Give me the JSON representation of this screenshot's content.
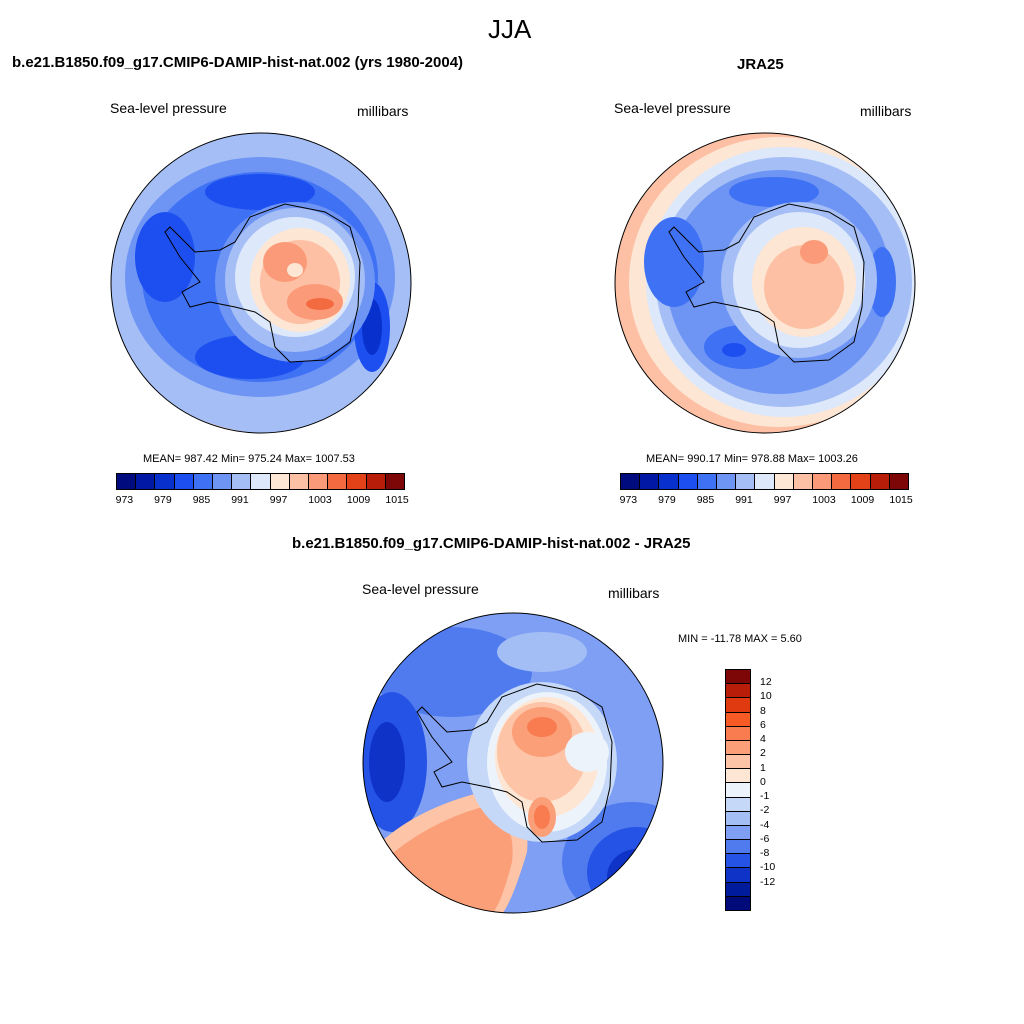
{
  "figure": {
    "season": "JJA",
    "diff_title": "b.e21.B1850.f09_g17.CMIP6-DAMIP-hist-nat.002 - JRA25"
  },
  "panels": [
    {
      "title": "b.e21.B1850.f09_g17.CMIP6-DAMIP-hist-nat.002 (yrs 1980-2004)",
      "variable": "Sea-level pressure",
      "units": "millibars",
      "stats": "MEAN= 987.42  Min= 975.24  Max= 1007.53"
    },
    {
      "title": "JRA25",
      "variable": "Sea-level pressure",
      "units": "millibars",
      "stats": "MEAN= 990.17  Min= 978.88  Max= 1003.26"
    },
    {
      "variable": "Sea-level pressure",
      "units": "millibars",
      "stats": "MIN = -11.78 MAX =   5.60"
    }
  ],
  "colorbars": {
    "abs": {
      "colors": [
        "#000b7d",
        "#0018a3",
        "#0830cc",
        "#1d4ff0",
        "#3f71f4",
        "#6e95f4",
        "#a5bff6",
        "#dde8fa",
        "#fde6d4",
        "#fdc0a4",
        "#fb9a78",
        "#f46a40",
        "#e34117",
        "#b71d08",
        "#7d0707"
      ],
      "tick_labels": [
        "973",
        "979",
        "985",
        "991",
        "997",
        "1003",
        "1009",
        "1015"
      ]
    },
    "diff": {
      "colors_top_down": [
        "#7d0707",
        "#b71d08",
        "#e03a10",
        "#f75a25",
        "#f87c4f",
        "#fb9f79",
        "#fdc4a7",
        "#fde6d4",
        "#edf3fb",
        "#c5d8f7",
        "#a3bef5",
        "#7e9ff3",
        "#4f7bef",
        "#2553e6",
        "#0f33c6",
        "#001c9c",
        "#000a78"
      ],
      "tick_labels": [
        "12",
        "10",
        "8",
        "6",
        "4",
        "2",
        "1",
        "0",
        "-1",
        "-2",
        "-4",
        "-6",
        "-8",
        "-10",
        "-12"
      ]
    }
  }
}
